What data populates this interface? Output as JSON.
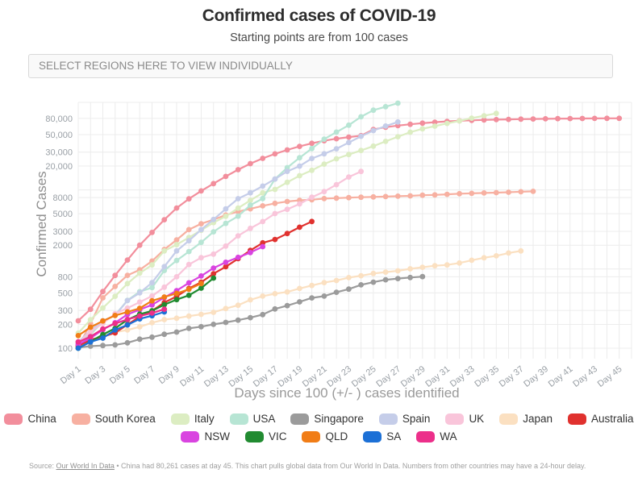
{
  "selector": {
    "placeholder": "SELECT REGIONS HERE TO VIEW INDIVIDUALLY"
  },
  "chart_data": {
    "type": "line",
    "title": "Confirmed cases of COVID-19",
    "subtitle": "Starting points are from 100 cases",
    "xlabel": "Days since 100 (+/- ) cases identified",
    "ylabel": "Confirmed Cases",
    "y_scale": "log",
    "xlim": [
      1,
      46
    ],
    "ylim": [
      100,
      130000
    ],
    "grid": true,
    "legend_position": "bottom",
    "y_ticks": [
      {
        "value": 80000,
        "label": "80,000"
      },
      {
        "value": 50000,
        "label": "50,000"
      },
      {
        "value": 30000,
        "label": "30,000"
      },
      {
        "value": 20000,
        "label": "20,000"
      },
      {
        "value": 8000,
        "label": "8000"
      },
      {
        "value": 5000,
        "label": "5000"
      },
      {
        "value": 3000,
        "label": "3000"
      },
      {
        "value": 2000,
        "label": "2000"
      },
      {
        "value": 800,
        "label": "800"
      },
      {
        "value": 500,
        "label": "500"
      },
      {
        "value": 300,
        "label": "300"
      },
      {
        "value": 200,
        "label": "200"
      },
      {
        "value": 100,
        "label": "100"
      }
    ],
    "y_gridline_values": [
      100,
      200,
      300,
      500,
      800,
      1000,
      2000,
      3000,
      5000,
      8000,
      10000,
      20000,
      30000,
      50000,
      80000
    ],
    "x_ticks": [
      {
        "day": 1,
        "label": "Day 1"
      },
      {
        "day": 3,
        "label": "Day 3"
      },
      {
        "day": 5,
        "label": "Day 5"
      },
      {
        "day": 7,
        "label": "Day 7"
      },
      {
        "day": 9,
        "label": "Day 9"
      },
      {
        "day": 11,
        "label": "Day 11"
      },
      {
        "day": 13,
        "label": "Day 13"
      },
      {
        "day": 15,
        "label": "Day 15"
      },
      {
        "day": 17,
        "label": "Day 17"
      },
      {
        "day": 19,
        "label": "Day 19"
      },
      {
        "day": 21,
        "label": "Day 21"
      },
      {
        "day": 23,
        "label": "Day 23"
      },
      {
        "day": 25,
        "label": "Day 25"
      },
      {
        "day": 27,
        "label": "Day 27"
      },
      {
        "day": 29,
        "label": "Day 29"
      },
      {
        "day": 31,
        "label": "Day 31"
      },
      {
        "day": 33,
        "label": "Day 33"
      },
      {
        "day": 35,
        "label": "Day 35"
      },
      {
        "day": 37,
        "label": "Day 37"
      },
      {
        "day": 39,
        "label": "Day 39"
      },
      {
        "day": 41,
        "label": "Day 41"
      },
      {
        "day": 43,
        "label": "Day 43"
      },
      {
        "day": 45,
        "label": "Day 45"
      }
    ],
    "series": [
      {
        "name": "China",
        "color": "#f28e9c",
        "start_day": 1,
        "values": [
          222,
          310,
          520,
          830,
          1300,
          2000,
          2900,
          4200,
          5900,
          7700,
          9700,
          12000,
          14800,
          18000,
          21500,
          25000,
          28500,
          32000,
          35500,
          38800,
          41800,
          44300,
          46500,
          48500,
          58000,
          62000,
          65000,
          67500,
          69700,
          71700,
          73400,
          74700,
          75700,
          76500,
          77200,
          77800,
          78300,
          78700,
          79100,
          79400,
          79700,
          79900,
          80050,
          80150,
          80261
        ]
      },
      {
        "name": "South Korea",
        "color": "#f7b0a1",
        "start_day": 1,
        "values": [
          104,
          204,
          433,
          602,
          833,
          977,
          1261,
          1766,
          2337,
          3150,
          3736,
          4212,
          4812,
          5328,
          5766,
          6284,
          6767,
          7134,
          7382,
          7513,
          7755,
          7869,
          7979,
          8086,
          8162,
          8236,
          8320,
          8413,
          8565,
          8652,
          8799,
          8961,
          9037,
          9137,
          9241,
          9332,
          9478,
          9583
        ]
      },
      {
        "name": "Italy",
        "color": "#dcedc2",
        "start_day": 1,
        "values": [
          155,
          229,
          322,
          453,
          655,
          888,
          1128,
          1694,
          2036,
          2502,
          3089,
          3858,
          4636,
          5883,
          7375,
          9172,
          10149,
          12462,
          15113,
          17660,
          21157,
          24747,
          27980,
          31506,
          35713,
          41035,
          47021,
          53578,
          59138,
          63927,
          69176,
          74386,
          80589,
          86498,
          92472
        ]
      },
      {
        "name": "USA",
        "color": "#b7e5d4",
        "start_day": 1,
        "values": [
          118,
          149,
          217,
          262,
          402,
          518,
          583,
          959,
          1281,
          1663,
          2174,
          2951,
          3774,
          4661,
          6427,
          7783,
          13677,
          19100,
          25489,
          33276,
          43847,
          53740,
          65778,
          83836,
          101657,
          112560,
          124665
        ]
      },
      {
        "name": "Singapore",
        "color": "#9b9b9b",
        "start_day": 1,
        "values": [
          102,
          106,
          108,
          110,
          117,
          130,
          138,
          150,
          160,
          178,
          187,
          200,
          212,
          226,
          243,
          266,
          313,
          345,
          385,
          432,
          455,
          509,
          558,
          631,
          683,
          732,
          758,
          781,
          802
        ]
      },
      {
        "name": "Spain",
        "color": "#c5cde9",
        "start_day": 1,
        "values": [
          120,
          165,
          222,
          259,
          400,
          500,
          673,
          1073,
          1695,
          2277,
          3146,
          4231,
          5753,
          7753,
          9191,
          11178,
          13716,
          17147,
          19980,
          24926,
          28572,
          33089,
          39673,
          47610,
          56188,
          64059,
          72248
        ]
      },
      {
        "name": "UK",
        "color": "#f9c5da",
        "start_day": 1,
        "values": [
          115,
          163,
          206,
          273,
          321,
          382,
          456,
          590,
          798,
          1140,
          1391,
          1543,
          1950,
          2626,
          3269,
          3983,
          5018,
          5683,
          6650,
          8077,
          9529,
          11658,
          14543,
          17089
        ]
      },
      {
        "name": "Japan",
        "color": "#fbe0c1",
        "start_day": 1,
        "values": [
          105,
          122,
          147,
          159,
          170,
          186,
          210,
          230,
          239,
          254,
          268,
          284,
          317,
          349,
          408,
          455,
          488,
          514,
          568,
          620,
          675,
          716,
          780,
          824,
          878,
          914,
          950,
          1007,
          1054,
          1101,
          1128,
          1193,
          1292,
          1387,
          1468,
          1593,
          1693
        ]
      },
      {
        "name": "Australia",
        "color": "#e0312e",
        "start_day": 1,
        "values": [
          107,
          128,
          140,
          156,
          199,
          250,
          297,
          377,
          452,
          568,
          681,
          873,
          1071,
          1352,
          1717,
          2144,
          2364,
          2810,
          3378,
          3984
        ]
      },
      {
        "name": "NSW",
        "color": "#d944e0",
        "start_day": 1,
        "values": [
          112,
          134,
          171,
          210,
          267,
          307,
          353,
          436,
          533,
          669,
          818,
          1029,
          1219,
          1405,
          1617,
          1918
        ]
      },
      {
        "name": "VIC",
        "color": "#218b31",
        "start_day": 1,
        "values": [
          100,
          121,
          149,
          178,
          229,
          269,
          296,
          355,
          411,
          466,
          574,
          769
        ]
      },
      {
        "name": "QLD",
        "color": "#f17d16",
        "start_day": 1,
        "values": [
          144,
          184,
          221,
          259,
          287,
          319,
          397,
          443,
          493,
          555,
          656
        ]
      },
      {
        "name": "SA",
        "color": "#1c70d6",
        "start_day": 1,
        "values": [
          100,
          120,
          134,
          170,
          197,
          235,
          257,
          287
        ]
      },
      {
        "name": "WA",
        "color": "#ec2f8a",
        "start_day": 1,
        "values": [
          120,
          140,
          175,
          205,
          231,
          255,
          278,
          311
        ]
      }
    ]
  },
  "legend": {
    "row1": [
      "China",
      "South Korea",
      "Italy",
      "USA",
      "Singapore",
      "Spain",
      "UK",
      "Japan",
      "Australia"
    ],
    "row2": [
      "NSW",
      "VIC",
      "QLD",
      "SA",
      "WA"
    ]
  },
  "footer": {
    "source_prefix": "Source: ",
    "source_link": "Our World In Data",
    "text": " • China had 80,261 cases at day 45. This chart pulls global data from Our World In Data. Numbers from other countries may have a 24-hour delay."
  }
}
